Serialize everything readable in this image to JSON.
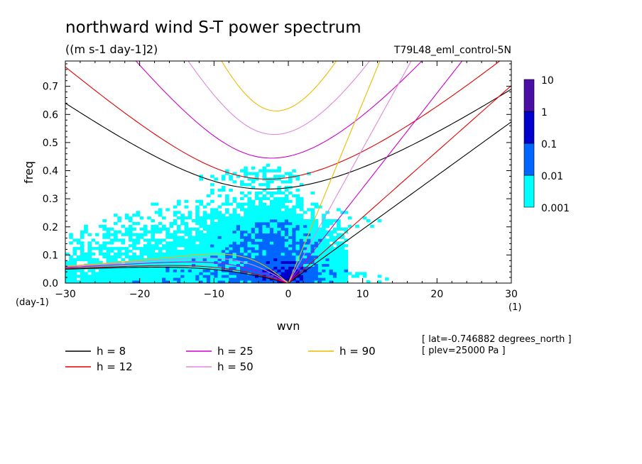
{
  "chart_data": {
    "type": "heatmap",
    "title": "northward wind S-T power spectrum",
    "units": "((m s-1 day-1]2)",
    "run_label": "T79L48_eml_control-5N",
    "xlabel": "wvn",
    "ylabel": "freq",
    "x_unit": "(1)",
    "y_unit": "(day-1)",
    "xlim": [
      -30,
      30
    ],
    "ylim": [
      0.0,
      0.79
    ],
    "x_ticks": [
      "-30",
      "-20",
      "-10",
      "0",
      "10",
      "20",
      "30"
    ],
    "y_ticks": [
      "0.0",
      "0.1",
      "0.2",
      "0.3",
      "0.4",
      "0.5",
      "0.6",
      "0.7"
    ],
    "colorbar": {
      "levels": [
        "0.001",
        "0.01",
        "0.1",
        "1",
        "10"
      ],
      "colors": [
        "#00ffff",
        "#0066ff",
        "#0000cc",
        "#4b0fa5"
      ]
    },
    "dispersion_curves": [
      {
        "name": "h =  8",
        "h": 8,
        "color": "#000000"
      },
      {
        "name": "h = 12",
        "h": 12,
        "color": "#e00000"
      },
      {
        "name": "h = 25",
        "h": 25,
        "color": "#cc00cc"
      },
      {
        "name": "h = 50",
        "h": 50,
        "color": "#dd88dd"
      },
      {
        "name": "h = 90",
        "h": 90,
        "color": "#eebb00"
      }
    ],
    "notes": [
      "[ lat=-0.746882 degrees_north ]",
      "[ plev=25000 Pa ]"
    ]
  }
}
